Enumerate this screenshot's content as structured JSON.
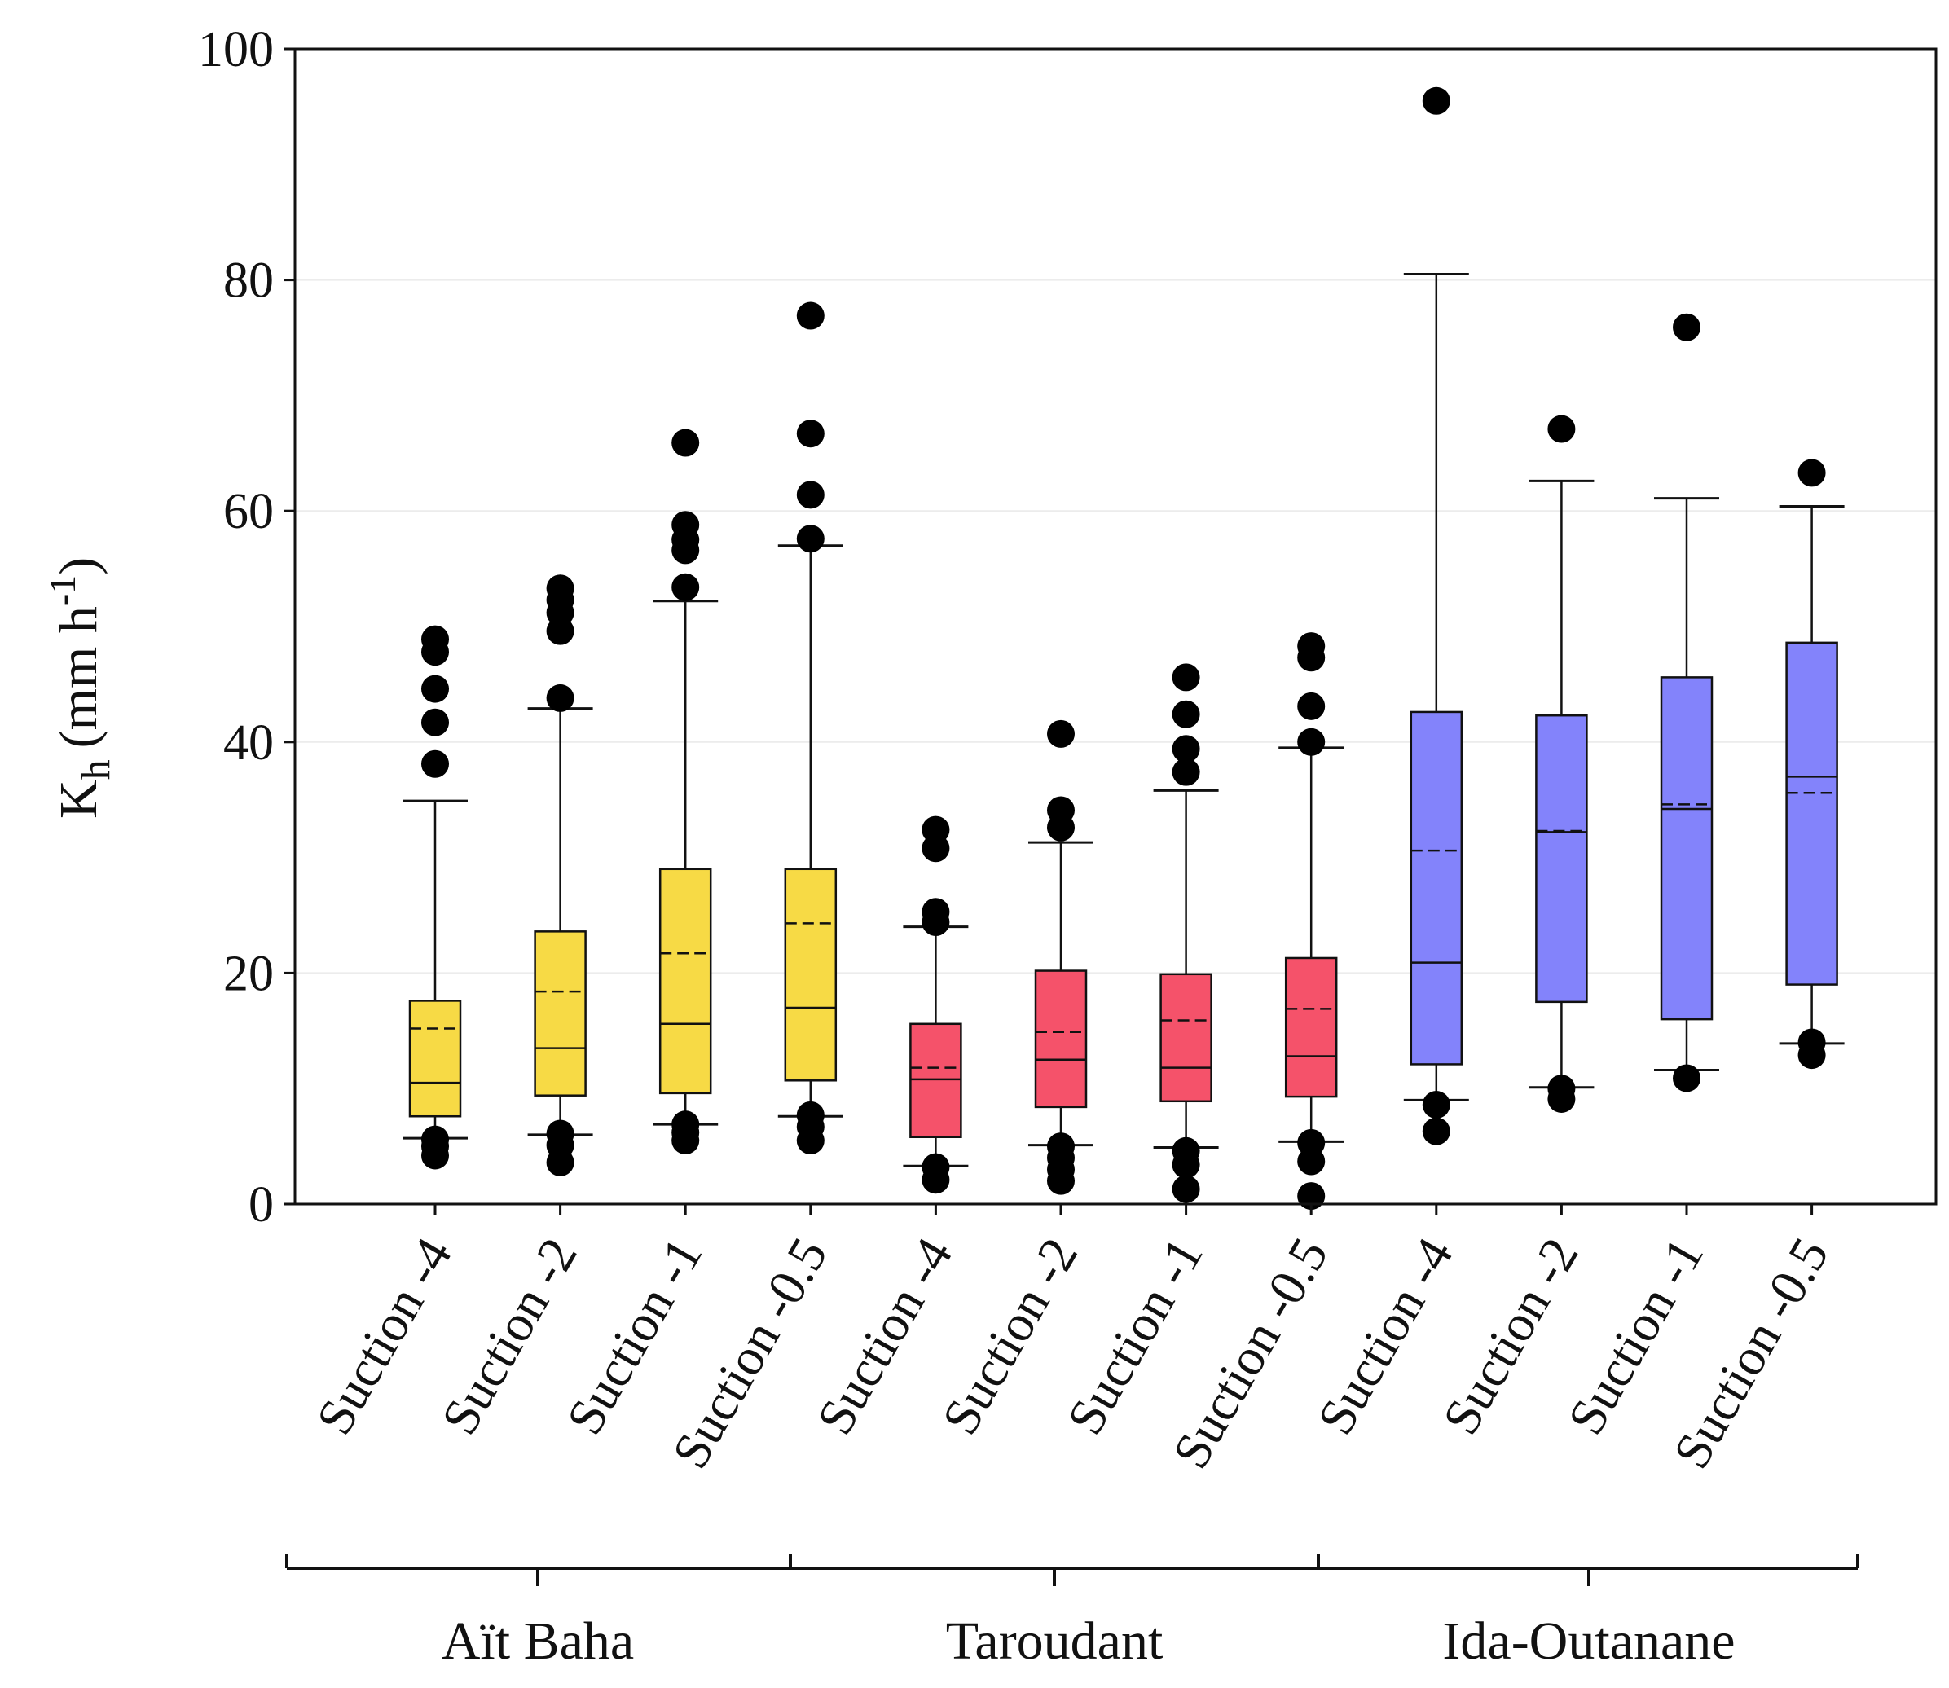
{
  "chart_data": {
    "type": "box",
    "title": "",
    "ylabel": {
      "main": "K",
      "sub": "h",
      "unit": "(mm h",
      "exp": "-1",
      "close": ")"
    },
    "ylim": [
      0,
      100
    ],
    "yticks": [
      0,
      20,
      40,
      60,
      80,
      100
    ],
    "grid": true,
    "legend": "none",
    "colors": {
      "Aït Baha": "#F7DA45",
      "Taroudant": "#F5526A",
      "Ida-Outanane": "#8383FB"
    },
    "groups": [
      "Aït Baha",
      "Taroudant",
      "Ida-Outanane"
    ],
    "boxes": [
      {
        "group": "Aït Baha",
        "label": "Suction -4",
        "whisker_low": 5.7,
        "q1": 7.6,
        "median": 10.5,
        "mean": 15.2,
        "q3": 17.6,
        "whisker_high": 34.9,
        "outliers": [
          4.2,
          5.0,
          5.6,
          38.1,
          41.7,
          44.6,
          47.8,
          48.9
        ]
      },
      {
        "group": "Aït Baha",
        "label": "Suction -2",
        "whisker_low": 6.0,
        "q1": 9.4,
        "median": 13.5,
        "mean": 18.4,
        "q3": 23.6,
        "whisker_high": 42.9,
        "outliers": [
          3.6,
          5.1,
          6.1,
          43.8,
          49.6,
          51.2,
          52.3,
          53.3
        ]
      },
      {
        "group": "Aït Baha",
        "label": "Suction -1",
        "whisker_low": 6.9,
        "q1": 9.6,
        "median": 15.6,
        "mean": 21.7,
        "q3": 29.0,
        "whisker_high": 52.2,
        "outliers": [
          5.5,
          6.2,
          6.9,
          53.4,
          56.6,
          57.5,
          58.8,
          65.9
        ]
      },
      {
        "group": "Aït Baha",
        "label": "Suction -0.5",
        "whisker_low": 7.6,
        "q1": 10.7,
        "median": 17.0,
        "mean": 24.3,
        "q3": 29.0,
        "whisker_high": 57.0,
        "outliers": [
          5.5,
          6.7,
          7.7,
          57.6,
          61.4,
          66.7,
          76.9
        ]
      },
      {
        "group": "Taroudant",
        "label": "Suction -4",
        "whisker_low": 3.3,
        "q1": 5.8,
        "median": 10.8,
        "mean": 11.8,
        "q3": 15.6,
        "whisker_high": 24.0,
        "outliers": [
          2.1,
          3.2,
          24.4,
          25.3,
          30.8,
          32.4
        ]
      },
      {
        "group": "Taroudant",
        "label": "Suction -2",
        "whisker_low": 5.1,
        "q1": 8.4,
        "median": 12.5,
        "mean": 14.9,
        "q3": 20.2,
        "whisker_high": 31.3,
        "outliers": [
          2.0,
          3.0,
          4.0,
          5.0,
          32.6,
          34.1,
          40.7
        ]
      },
      {
        "group": "Taroudant",
        "label": "Suction -1",
        "whisker_low": 4.9,
        "q1": 8.9,
        "median": 11.8,
        "mean": 15.9,
        "q3": 19.9,
        "whisker_high": 35.8,
        "outliers": [
          1.3,
          3.4,
          4.6,
          37.4,
          39.4,
          42.4,
          45.6
        ]
      },
      {
        "group": "Taroudant",
        "label": "Suction -0.5",
        "whisker_low": 5.4,
        "q1": 9.3,
        "median": 12.8,
        "mean": 16.9,
        "q3": 21.3,
        "whisker_high": 39.5,
        "outliers": [
          0.7,
          3.7,
          5.3,
          40.0,
          43.1,
          47.3,
          48.3
        ]
      },
      {
        "group": "Ida-Outanane",
        "label": "Suction -4",
        "whisker_low": 9.0,
        "q1": 12.1,
        "median": 20.9,
        "mean": 30.6,
        "q3": 42.6,
        "whisker_high": 80.5,
        "outliers": [
          6.3,
          8.6,
          95.5
        ]
      },
      {
        "group": "Ida-Outanane",
        "label": "Suction -2",
        "whisker_low": 10.1,
        "q1": 17.5,
        "median": 32.2,
        "mean": 32.3,
        "q3": 42.3,
        "whisker_high": 62.6,
        "outliers": [
          9.1,
          10.0,
          67.1
        ]
      },
      {
        "group": "Ida-Outanane",
        "label": "Suction -1",
        "whisker_low": 11.6,
        "q1": 16.0,
        "median": 34.2,
        "mean": 34.6,
        "q3": 45.6,
        "whisker_high": 61.1,
        "outliers": [
          10.9,
          75.9
        ]
      },
      {
        "group": "Ida-Outanane",
        "label": "Suction -0.5",
        "whisker_low": 13.9,
        "q1": 19.0,
        "median": 37.0,
        "mean": 35.6,
        "q3": 48.6,
        "whisker_high": 60.4,
        "outliers": [
          12.9,
          14.0,
          63.3
        ]
      }
    ]
  }
}
